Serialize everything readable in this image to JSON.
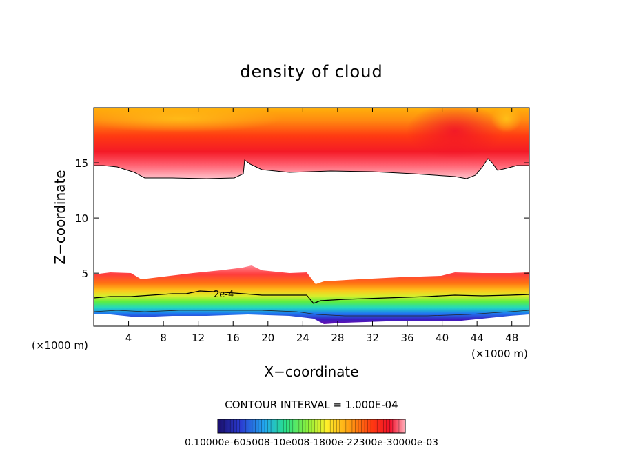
{
  "chart_data": {
    "type": "contour",
    "title": "density of cloud",
    "xlabel": "X−coordinate",
    "ylabel": "Z−coordinate",
    "x_unit_left": "(×1000 m)",
    "x_unit_right": "(×1000 m)",
    "xlim": [
      0,
      50
    ],
    "ylim": [
      0.2,
      20
    ],
    "x_ticks": [
      4,
      8,
      12,
      16,
      20,
      24,
      28,
      32,
      36,
      40,
      44,
      48
    ],
    "y_ticks": [
      5,
      10,
      15
    ],
    "contour_label": "2e-4",
    "contour_interval_text": "CONTOUR INTERVAL = 1.000E-04",
    "colorbar_labels_text": "0.10000e-605008-10e008-1800e-22300e-30000e-03",
    "colorbar_colors": [
      "#1a0f6b",
      "#3a1b9e",
      "#2a3ad0",
      "#1f6ff0",
      "#22a8f0",
      "#24d6d0",
      "#28e08a",
      "#3ff04a",
      "#8cf03a",
      "#d6ee2e",
      "#fff02a",
      "#ffcc1c",
      "#ffa012",
      "#ff7010",
      "#ff3a10",
      "#f2102a",
      "#ff5a6a",
      "#ffb0bc"
    ],
    "grid": false
  }
}
